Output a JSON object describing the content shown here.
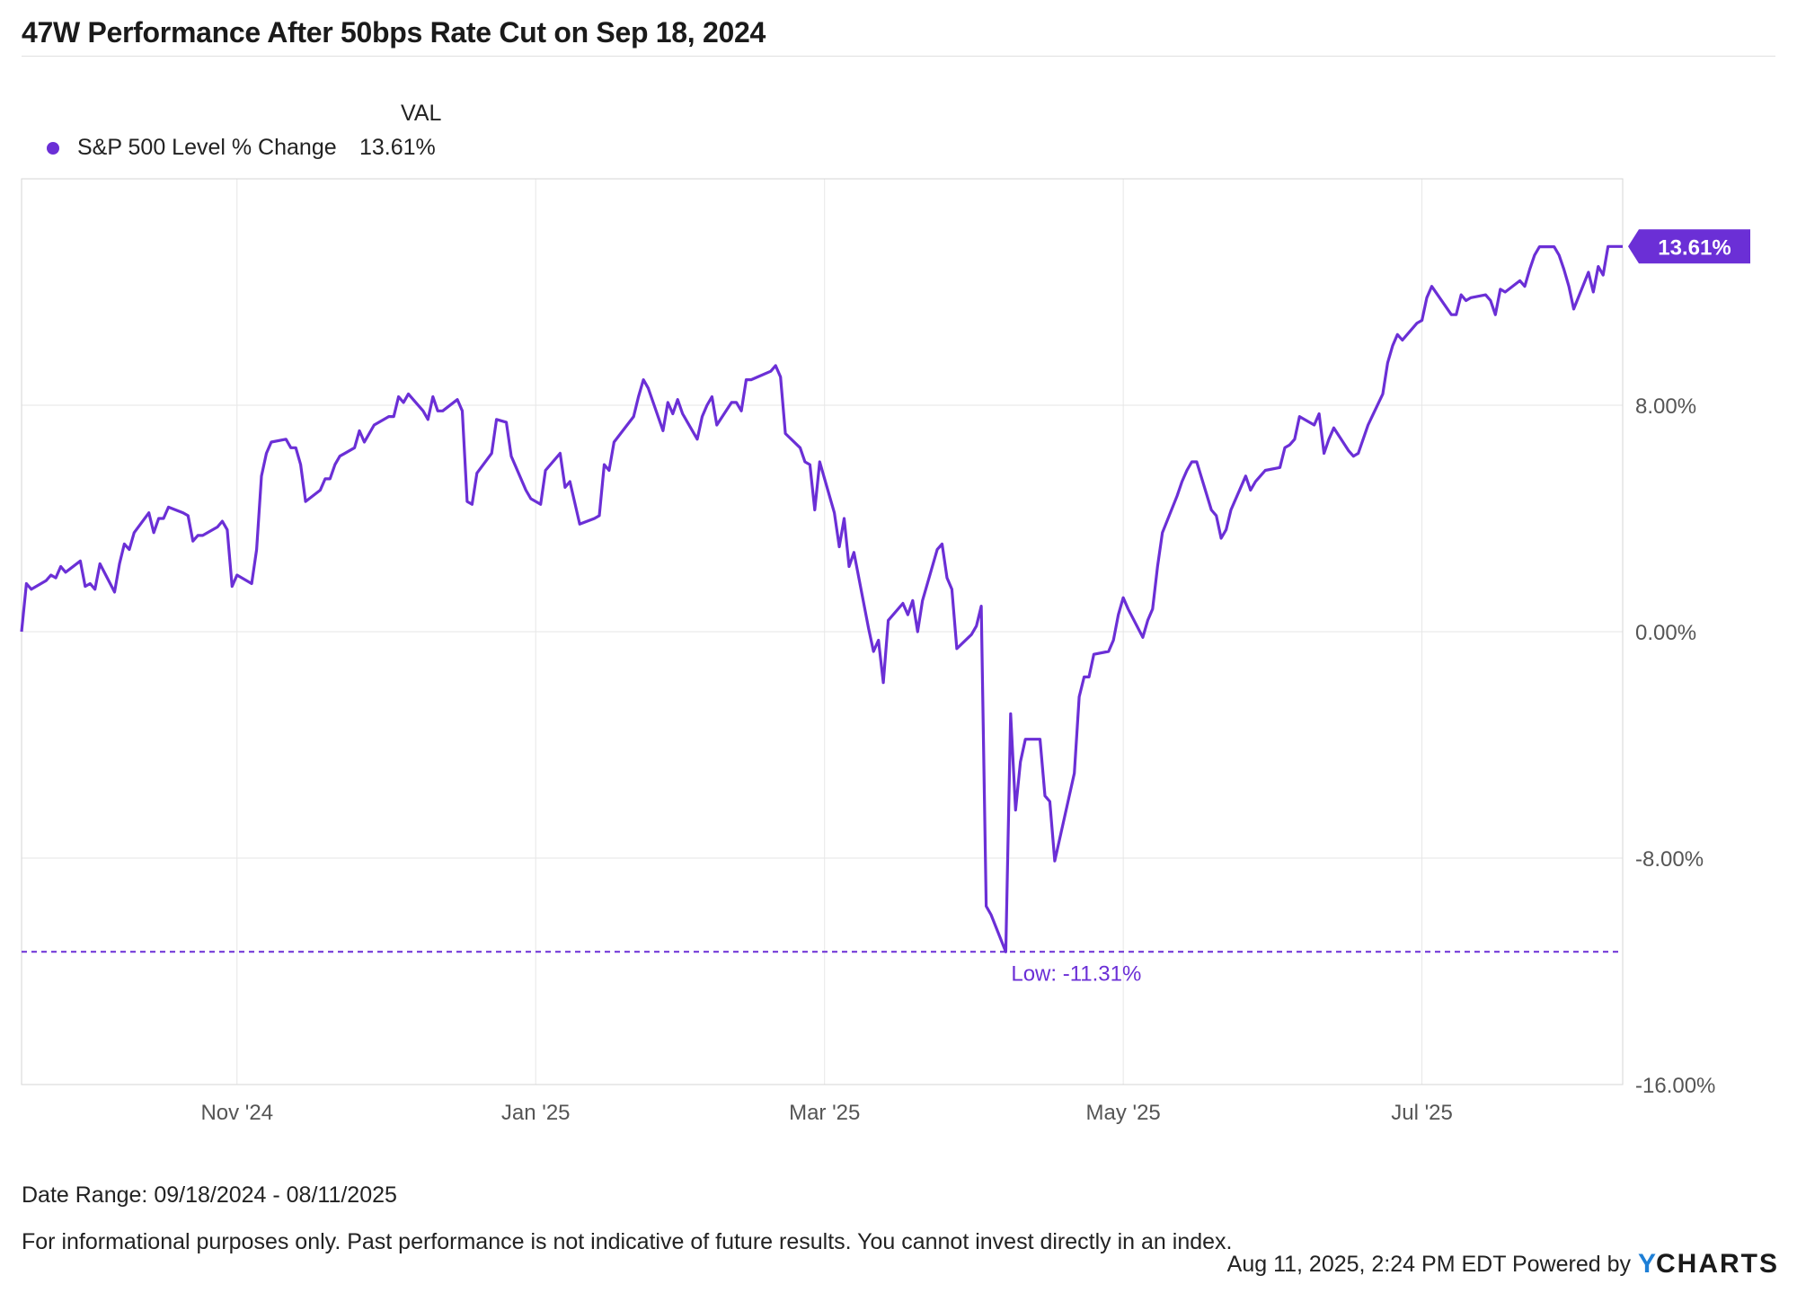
{
  "header": {
    "title": "47W Performance After 50bps Rate Cut on Sep 18, 2024"
  },
  "legend": {
    "column_header": "VAL",
    "series_name": "S&P 500 Level % Change",
    "series_value": "13.61%"
  },
  "footer": {
    "date_range": "Date Range: 09/18/2024 - 08/11/2025",
    "disclaimer": "For informational purposes only. Past performance is not indicative of future results. You cannot invest directly in an index.",
    "timestamp": "Aug 11, 2025, 2:24 PM EDT Powered by",
    "logo_text_y": "Y",
    "logo_text_rest": "CHARTS"
  },
  "colors": {
    "series": "#6b2fd6",
    "grid": "#e6e6e6",
    "axis_text": "#555555",
    "logo_blue": "#1e7fd6"
  },
  "chart_data": {
    "type": "line",
    "x_start": "2024-09-18",
    "x_end": "2025-08-11",
    "x_ticks": [
      {
        "label": "Nov '24",
        "date": "2024-11-01"
      },
      {
        "label": "Jan '25",
        "date": "2025-01-01"
      },
      {
        "label": "Mar '25",
        "date": "2025-03-01"
      },
      {
        "label": "May '25",
        "date": "2025-05-01"
      },
      {
        "label": "Jul '25",
        "date": "2025-07-01"
      }
    ],
    "ylim": [
      -16,
      16
    ],
    "y_ticks": [
      {
        "label": "8.00%",
        "value": 8
      },
      {
        "label": "0.00%",
        "value": 0
      },
      {
        "label": "-8.00%",
        "value": -8
      },
      {
        "label": "-16.00%",
        "value": -16
      }
    ],
    "grid": true,
    "legend_position": "top-left",
    "series": [
      {
        "name": "S&P 500 Level % Change",
        "points": [
          [
            "2024-09-18",
            0.0
          ],
          [
            "2024-09-19",
            1.7
          ],
          [
            "2024-09-20",
            1.5
          ],
          [
            "2024-09-23",
            1.8
          ],
          [
            "2024-09-24",
            2.0
          ],
          [
            "2024-09-25",
            1.9
          ],
          [
            "2024-09-26",
            2.3
          ],
          [
            "2024-09-27",
            2.1
          ],
          [
            "2024-09-30",
            2.5
          ],
          [
            "2024-10-01",
            1.6
          ],
          [
            "2024-10-02",
            1.7
          ],
          [
            "2024-10-03",
            1.5
          ],
          [
            "2024-10-04",
            2.4
          ],
          [
            "2024-10-07",
            1.4
          ],
          [
            "2024-10-08",
            2.4
          ],
          [
            "2024-10-09",
            3.1
          ],
          [
            "2024-10-10",
            2.9
          ],
          [
            "2024-10-11",
            3.5
          ],
          [
            "2024-10-14",
            4.2
          ],
          [
            "2024-10-15",
            3.5
          ],
          [
            "2024-10-16",
            4.0
          ],
          [
            "2024-10-17",
            4.0
          ],
          [
            "2024-10-18",
            4.4
          ],
          [
            "2024-10-21",
            4.2
          ],
          [
            "2024-10-22",
            4.1
          ],
          [
            "2024-10-23",
            3.2
          ],
          [
            "2024-10-24",
            3.4
          ],
          [
            "2024-10-25",
            3.4
          ],
          [
            "2024-10-28",
            3.7
          ],
          [
            "2024-10-29",
            3.9
          ],
          [
            "2024-10-30",
            3.6
          ],
          [
            "2024-10-31",
            1.6
          ],
          [
            "2024-11-01",
            2.0
          ],
          [
            "2024-11-04",
            1.7
          ],
          [
            "2024-11-05",
            2.9
          ],
          [
            "2024-11-06",
            5.5
          ],
          [
            "2024-11-07",
            6.3
          ],
          [
            "2024-11-08",
            6.7
          ],
          [
            "2024-11-11",
            6.8
          ],
          [
            "2024-11-12",
            6.5
          ],
          [
            "2024-11-13",
            6.5
          ],
          [
            "2024-11-14",
            5.9
          ],
          [
            "2024-11-15",
            4.6
          ],
          [
            "2024-11-18",
            5.0
          ],
          [
            "2024-11-19",
            5.4
          ],
          [
            "2024-11-20",
            5.4
          ],
          [
            "2024-11-21",
            5.9
          ],
          [
            "2024-11-22",
            6.2
          ],
          [
            "2024-11-25",
            6.5
          ],
          [
            "2024-11-26",
            7.1
          ],
          [
            "2024-11-27",
            6.7
          ],
          [
            "2024-11-29",
            7.3
          ],
          [
            "2024-12-02",
            7.6
          ],
          [
            "2024-12-03",
            7.6
          ],
          [
            "2024-12-04",
            8.3
          ],
          [
            "2024-12-05",
            8.1
          ],
          [
            "2024-12-06",
            8.4
          ],
          [
            "2024-12-09",
            7.8
          ],
          [
            "2024-12-10",
            7.5
          ],
          [
            "2024-12-11",
            8.3
          ],
          [
            "2024-12-12",
            7.8
          ],
          [
            "2024-12-13",
            7.8
          ],
          [
            "2024-12-16",
            8.2
          ],
          [
            "2024-12-17",
            7.8
          ],
          [
            "2024-12-18",
            4.6
          ],
          [
            "2024-12-19",
            4.5
          ],
          [
            "2024-12-20",
            5.6
          ],
          [
            "2024-12-23",
            6.3
          ],
          [
            "2024-12-24",
            7.5
          ],
          [
            "2024-12-26",
            7.4
          ],
          [
            "2024-12-27",
            6.2
          ],
          [
            "2024-12-30",
            5.0
          ],
          [
            "2024-12-31",
            4.7
          ],
          [
            "2025-01-02",
            4.5
          ],
          [
            "2025-01-03",
            5.7
          ],
          [
            "2025-01-06",
            6.3
          ],
          [
            "2025-01-07",
            5.1
          ],
          [
            "2025-01-08",
            5.3
          ],
          [
            "2025-01-10",
            3.8
          ],
          [
            "2025-01-13",
            4.0
          ],
          [
            "2025-01-14",
            4.1
          ],
          [
            "2025-01-15",
            5.9
          ],
          [
            "2025-01-16",
            5.7
          ],
          [
            "2025-01-17",
            6.7
          ],
          [
            "2025-01-21",
            7.6
          ],
          [
            "2025-01-22",
            8.3
          ],
          [
            "2025-01-23",
            8.9
          ],
          [
            "2025-01-24",
            8.6
          ],
          [
            "2025-01-27",
            7.1
          ],
          [
            "2025-01-28",
            8.1
          ],
          [
            "2025-01-29",
            7.7
          ],
          [
            "2025-01-30",
            8.2
          ],
          [
            "2025-01-31",
            7.7
          ],
          [
            "2025-02-03",
            6.8
          ],
          [
            "2025-02-04",
            7.6
          ],
          [
            "2025-02-05",
            8.0
          ],
          [
            "2025-02-06",
            8.3
          ],
          [
            "2025-02-07",
            7.3
          ],
          [
            "2025-02-10",
            8.1
          ],
          [
            "2025-02-11",
            8.1
          ],
          [
            "2025-02-12",
            7.8
          ],
          [
            "2025-02-13",
            8.9
          ],
          [
            "2025-02-14",
            8.9
          ],
          [
            "2025-02-18",
            9.2
          ],
          [
            "2025-02-19",
            9.4
          ],
          [
            "2025-02-20",
            9.0
          ],
          [
            "2025-02-21",
            7.0
          ],
          [
            "2025-02-24",
            6.5
          ],
          [
            "2025-02-25",
            6.0
          ],
          [
            "2025-02-26",
            5.9
          ],
          [
            "2025-02-27",
            4.3
          ],
          [
            "2025-02-28",
            6.0
          ],
          [
            "2025-03-03",
            4.2
          ],
          [
            "2025-03-04",
            3.0
          ],
          [
            "2025-03-05",
            4.0
          ],
          [
            "2025-03-06",
            2.3
          ],
          [
            "2025-03-07",
            2.8
          ],
          [
            "2025-03-10",
            0.1
          ],
          [
            "2025-03-11",
            -0.7
          ],
          [
            "2025-03-12",
            -0.3
          ],
          [
            "2025-03-13",
            -1.8
          ],
          [
            "2025-03-14",
            0.4
          ],
          [
            "2025-03-17",
            1.0
          ],
          [
            "2025-03-18",
            0.6
          ],
          [
            "2025-03-19",
            1.1
          ],
          [
            "2025-03-20",
            0.0
          ],
          [
            "2025-03-21",
            1.1
          ],
          [
            "2025-03-24",
            2.9
          ],
          [
            "2025-03-25",
            3.1
          ],
          [
            "2025-03-26",
            1.9
          ],
          [
            "2025-03-27",
            1.5
          ],
          [
            "2025-03-28",
            -0.6
          ],
          [
            "2025-03-31",
            -0.1
          ],
          [
            "2025-04-01",
            0.2
          ],
          [
            "2025-04-02",
            0.9
          ],
          [
            "2025-04-03",
            -9.7
          ],
          [
            "2025-04-04",
            -10.0
          ],
          [
            "2025-04-07",
            -11.31
          ],
          [
            "2025-04-08",
            -2.9
          ],
          [
            "2025-04-09",
            -6.3
          ],
          [
            "2025-04-10",
            -4.6
          ],
          [
            "2025-04-11",
            -3.8
          ],
          [
            "2025-04-14",
            -3.8
          ],
          [
            "2025-04-15",
            -5.8
          ],
          [
            "2025-04-16",
            -6.0
          ],
          [
            "2025-04-17",
            -8.1
          ],
          [
            "2025-04-21",
            -5.0
          ],
          [
            "2025-04-22",
            -2.3
          ],
          [
            "2025-04-23",
            -1.6
          ],
          [
            "2025-04-24",
            -1.6
          ],
          [
            "2025-04-25",
            -0.8
          ],
          [
            "2025-04-28",
            -0.7
          ],
          [
            "2025-04-29",
            -0.3
          ],
          [
            "2025-04-30",
            0.6
          ],
          [
            "2025-05-01",
            1.2
          ],
          [
            "2025-05-02",
            0.8
          ],
          [
            "2025-05-05",
            -0.2
          ],
          [
            "2025-05-06",
            0.4
          ],
          [
            "2025-05-07",
            0.8
          ],
          [
            "2025-05-08",
            2.3
          ],
          [
            "2025-05-09",
            3.5
          ],
          [
            "2025-05-12",
            4.8
          ],
          [
            "2025-05-13",
            5.3
          ],
          [
            "2025-05-14",
            5.7
          ],
          [
            "2025-05-15",
            6.0
          ],
          [
            "2025-05-16",
            6.0
          ],
          [
            "2025-05-19",
            4.3
          ],
          [
            "2025-05-20",
            4.1
          ],
          [
            "2025-05-21",
            3.3
          ],
          [
            "2025-05-22",
            3.6
          ],
          [
            "2025-05-23",
            4.3
          ],
          [
            "2025-05-26",
            5.5
          ],
          [
            "2025-05-27",
            5.0
          ],
          [
            "2025-05-28",
            5.3
          ],
          [
            "2025-05-29",
            5.5
          ],
          [
            "2025-05-30",
            5.7
          ],
          [
            "2025-06-02",
            5.8
          ],
          [
            "2025-06-03",
            6.5
          ],
          [
            "2025-06-04",
            6.6
          ],
          [
            "2025-06-05",
            6.8
          ],
          [
            "2025-06-06",
            7.6
          ],
          [
            "2025-06-09",
            7.3
          ],
          [
            "2025-06-10",
            7.7
          ],
          [
            "2025-06-11",
            6.3
          ],
          [
            "2025-06-12",
            6.8
          ],
          [
            "2025-06-13",
            7.2
          ],
          [
            "2025-06-16",
            6.4
          ],
          [
            "2025-06-17",
            6.2
          ],
          [
            "2025-06-18",
            6.3
          ],
          [
            "2025-06-20",
            7.3
          ],
          [
            "2025-06-23",
            8.4
          ],
          [
            "2025-06-24",
            9.5
          ],
          [
            "2025-06-25",
            10.1
          ],
          [
            "2025-06-26",
            10.5
          ],
          [
            "2025-06-27",
            10.3
          ],
          [
            "2025-06-30",
            10.9
          ],
          [
            "2025-07-01",
            11.0
          ],
          [
            "2025-07-02",
            11.8
          ],
          [
            "2025-07-03",
            12.2
          ],
          [
            "2025-07-07",
            11.2
          ],
          [
            "2025-07-08",
            11.2
          ],
          [
            "2025-07-09",
            11.9
          ],
          [
            "2025-07-10",
            11.7
          ],
          [
            "2025-07-11",
            11.8
          ],
          [
            "2025-07-14",
            11.9
          ],
          [
            "2025-07-15",
            11.7
          ],
          [
            "2025-07-16",
            11.2
          ],
          [
            "2025-07-17",
            12.1
          ],
          [
            "2025-07-18",
            12.0
          ],
          [
            "2025-07-21",
            12.4
          ],
          [
            "2025-07-22",
            12.2
          ],
          [
            "2025-07-23",
            12.8
          ],
          [
            "2025-07-24",
            13.3
          ],
          [
            "2025-07-25",
            13.6
          ],
          [
            "2025-07-28",
            13.6
          ],
          [
            "2025-07-29",
            13.3
          ],
          [
            "2025-07-30",
            12.8
          ],
          [
            "2025-07-31",
            12.2
          ],
          [
            "2025-08-01",
            11.4
          ],
          [
            "2025-08-04",
            12.7
          ],
          [
            "2025-08-05",
            12.0
          ],
          [
            "2025-08-06",
            12.9
          ],
          [
            "2025-08-07",
            12.6
          ],
          [
            "2025-08-08",
            13.61
          ],
          [
            "2025-08-11",
            13.61
          ]
        ]
      }
    ],
    "annotations": {
      "low_label": "Low: -11.31%",
      "low_value": -11.31,
      "low_date": "2025-04-07",
      "last_value_label": "13.61%",
      "last_value": 13.61
    }
  }
}
